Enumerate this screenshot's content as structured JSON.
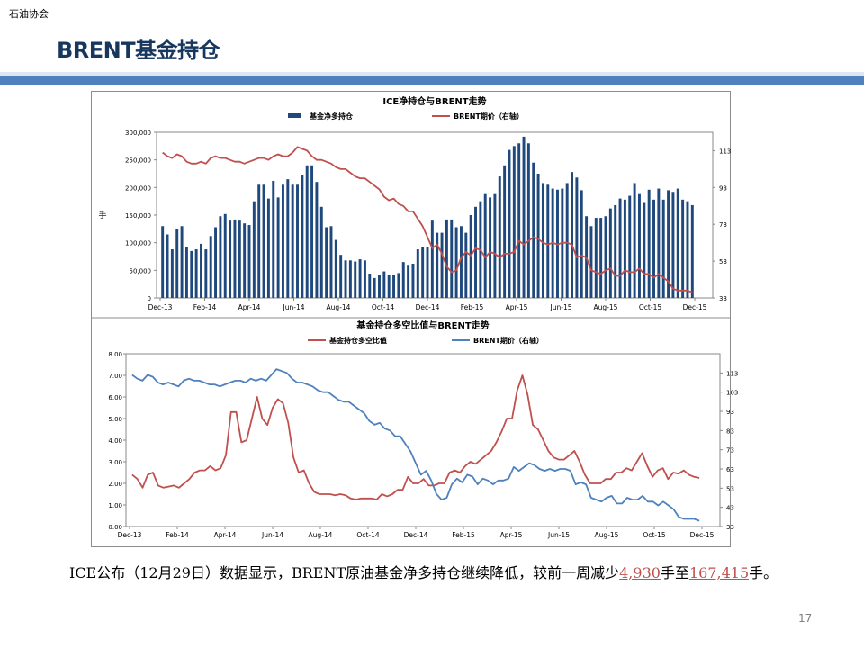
{
  "header": {
    "org": "石油协会",
    "title": "BRENT基金持仓"
  },
  "caption": {
    "prefix": "ICE公布（12月29日）数据显示，BRENT原油基金净多持仓继续降低，较前一周减少",
    "change": "4,930",
    "mid": "手至",
    "total": "167,415",
    "suffix": "手。"
  },
  "page_number": "17",
  "colors": {
    "navy": "#1f497d",
    "red": "#c0504d",
    "blue": "#4f81bd",
    "bar": "#1f497d"
  },
  "chart_data": [
    {
      "type": "bar+line",
      "title": "ICE净持仓与BRENT走势",
      "ylabel": "手",
      "x_tick_labels": [
        "Dec-13",
        "Feb-14",
        "Apr-14",
        "Jun-14",
        "Aug-14",
        "Oct-14",
        "Dec-14",
        "Feb-15",
        "Apr-15",
        "Jun-15",
        "Aug-15",
        "Oct-15",
        "Dec-15"
      ],
      "ylim": [
        0,
        300000
      ],
      "y_ticks": [
        "0",
        "50,000",
        "100,000",
        "150,000",
        "200,000",
        "250,000",
        "300,000"
      ],
      "y2lim": [
        33,
        123
      ],
      "y2_ticks": [
        "33",
        "53",
        "73",
        "93",
        "113"
      ],
      "series": [
        {
          "name": "基金净多持仓",
          "kind": "bar",
          "color": "#1f497d",
          "values": [
            130000,
            115000,
            88000,
            125000,
            130000,
            92000,
            85000,
            88000,
            98000,
            88000,
            112000,
            128000,
            148000,
            152000,
            140000,
            142000,
            140000,
            135000,
            132000,
            175000,
            205000,
            205000,
            180000,
            212000,
            182000,
            205000,
            215000,
            205000,
            205000,
            222000,
            240000,
            240000,
            210000,
            165000,
            128000,
            130000,
            105000,
            78000,
            68000,
            68000,
            66000,
            70000,
            68000,
            44000,
            36000,
            42000,
            48000,
            42000,
            42000,
            45000,
            65000,
            60000,
            62000,
            88000,
            92000,
            92000,
            140000,
            118000,
            118000,
            142000,
            142000,
            128000,
            130000,
            118000,
            150000,
            165000,
            175000,
            188000,
            182000,
            188000,
            220000,
            240000,
            268000,
            275000,
            280000,
            292000,
            280000,
            245000,
            225000,
            208000,
            205000,
            198000,
            196000,
            198000,
            208000,
            228000,
            218000,
            195000,
            148000,
            130000,
            145000,
            145000,
            148000,
            162000,
            168000,
            180000,
            178000,
            185000,
            208000,
            188000,
            172000,
            196000,
            178000,
            198000,
            178000,
            195000,
            192000,
            198000,
            178000,
            175000,
            168000
          ]
        },
        {
          "name": "BRENT期价（右轴）",
          "kind": "line",
          "axis": "right",
          "color": "#c0504d",
          "values": [
            112,
            110,
            109,
            111,
            110,
            107,
            106,
            106,
            107,
            106,
            109,
            110,
            109,
            109,
            108,
            107,
            107,
            106,
            107,
            108,
            109,
            109,
            108,
            110,
            111,
            110,
            110,
            112,
            115,
            114,
            113,
            110,
            108,
            108,
            107,
            106,
            104,
            103,
            103,
            101,
            99,
            98,
            98,
            96,
            94,
            92,
            88,
            86,
            87,
            84,
            83,
            80,
            80,
            76,
            72,
            66,
            60,
            62,
            57,
            50,
            47,
            48,
            55,
            58,
            56,
            60,
            59,
            55,
            58,
            57,
            55,
            57,
            57,
            58,
            64,
            62,
            64,
            66,
            65,
            63,
            62,
            63,
            62,
            63,
            63,
            62,
            55,
            56,
            55,
            48,
            47,
            46,
            48,
            49,
            45,
            45,
            48,
            47,
            47,
            49,
            46,
            46,
            44,
            46,
            44,
            42,
            38,
            37,
            37,
            37,
            36
          ]
        }
      ]
    },
    {
      "type": "line",
      "title": "基金持仓多空比值与BRENT走势",
      "x_tick_labels": [
        "Dec-13",
        "Feb-14",
        "Apr-14",
        "Jun-14",
        "Aug-14",
        "Oct-14",
        "Dec-14",
        "Feb-15",
        "Apr-15",
        "Jun-15",
        "Aug-15",
        "Oct-15",
        "Dec-15"
      ],
      "ylim": [
        0,
        8
      ],
      "y_ticks": [
        "0.00",
        "1.00",
        "2.00",
        "3.00",
        "4.00",
        "5.00",
        "6.00",
        "7.00",
        "8.00"
      ],
      "y2lim": [
        33,
        123
      ],
      "y2_ticks": [
        "33",
        "43",
        "53",
        "63",
        "73",
        "83",
        "93",
        "103",
        "113"
      ],
      "series": [
        {
          "name": "基金持仓多空比值",
          "color": "#c0504d",
          "values": [
            2.4,
            2.2,
            1.8,
            2.4,
            2.5,
            1.9,
            1.8,
            1.85,
            1.9,
            1.8,
            2.0,
            2.2,
            2.5,
            2.6,
            2.6,
            2.8,
            2.6,
            2.7,
            3.3,
            5.3,
            5.3,
            3.9,
            4.0,
            5.0,
            6.0,
            5.0,
            4.7,
            5.5,
            5.9,
            5.7,
            4.8,
            3.2,
            2.5,
            2.6,
            2.0,
            1.6,
            1.5,
            1.5,
            1.5,
            1.45,
            1.5,
            1.45,
            1.3,
            1.25,
            1.3,
            1.3,
            1.3,
            1.25,
            1.5,
            1.4,
            1.5,
            1.7,
            1.7,
            2.3,
            2.0,
            2.0,
            2.2,
            1.9,
            1.9,
            2.0,
            2.0,
            2.5,
            2.6,
            2.5,
            2.8,
            3.0,
            2.9,
            3.1,
            3.3,
            3.5,
            3.9,
            4.4,
            5.0,
            5.0,
            6.3,
            7.0,
            6.1,
            4.7,
            4.5,
            4.0,
            3.5,
            3.2,
            3.1,
            3.1,
            3.3,
            3.5,
            3.0,
            2.4,
            2.0,
            2.0,
            2.0,
            2.2,
            2.2,
            2.5,
            2.5,
            2.7,
            2.6,
            3.0,
            3.4,
            2.8,
            2.3,
            2.6,
            2.7,
            2.2,
            2.5,
            2.45,
            2.6,
            2.4,
            2.3,
            2.25
          ]
        },
        {
          "name": "BRENT期价（右轴）",
          "axis": "right",
          "color": "#4f81bd",
          "values": [
            112,
            110,
            109,
            112,
            111,
            108,
            107,
            108,
            107,
            106,
            109,
            110,
            109,
            109,
            108,
            107,
            107,
            106,
            107,
            108,
            109,
            109,
            108,
            110,
            109,
            110,
            109,
            112,
            115,
            114,
            113,
            110,
            108,
            108,
            107,
            106,
            104,
            103,
            103,
            101,
            99,
            98,
            98,
            96,
            94,
            92,
            88,
            86,
            87,
            84,
            83,
            80,
            80,
            76,
            72,
            66,
            60,
            62,
            57,
            50,
            47,
            48,
            55,
            58,
            56,
            60,
            59,
            55,
            58,
            57,
            55,
            57,
            57,
            58,
            64,
            62,
            64,
            66,
            65,
            63,
            62,
            63,
            62,
            63,
            63,
            62,
            55,
            56,
            55,
            48,
            47,
            46,
            48,
            49,
            45,
            45,
            48,
            47,
            47,
            49,
            46,
            46,
            44,
            46,
            44,
            42,
            38,
            37,
            37,
            37,
            36
          ]
        }
      ]
    }
  ]
}
